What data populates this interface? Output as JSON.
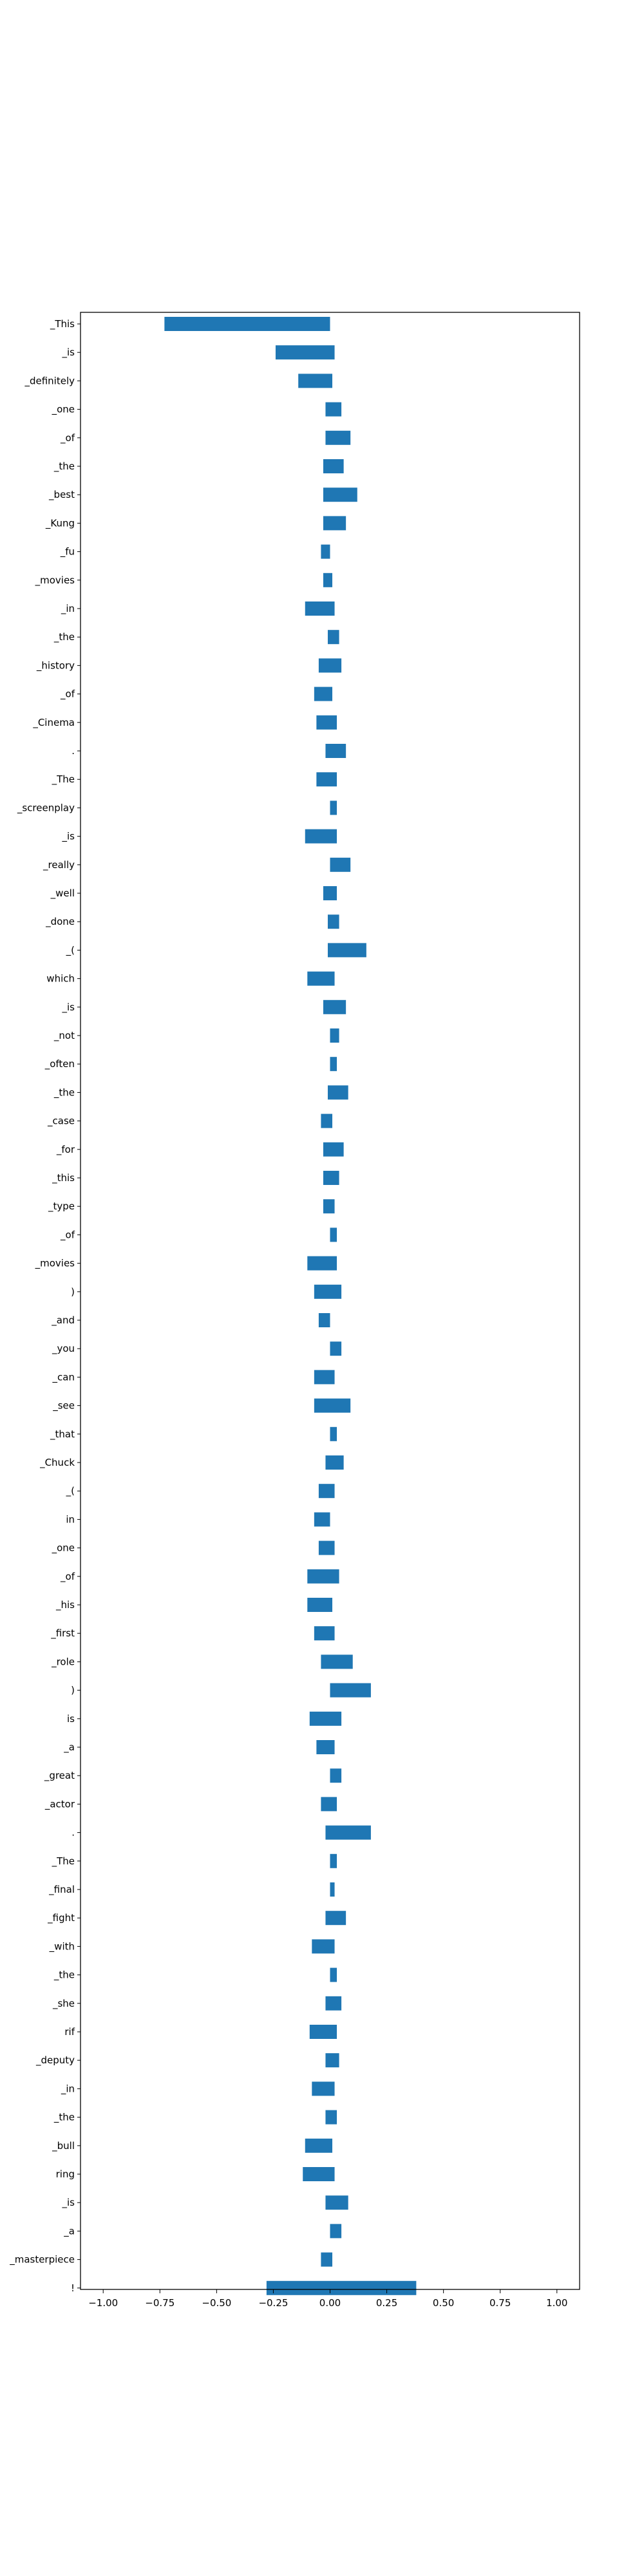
{
  "chart_data": {
    "type": "bar",
    "orientation": "horizontal",
    "grid": false,
    "xlim": [
      -1.1,
      1.1
    ],
    "xticks": [
      -1.0,
      -0.75,
      -0.5,
      -0.25,
      0.0,
      0.25,
      0.5,
      0.75,
      1.0
    ],
    "xtick_labels": [
      "−1.00",
      "−0.75",
      "−0.50",
      "−0.25",
      "0.00",
      "0.25",
      "0.50",
      "0.75",
      "1.00"
    ],
    "colors": {
      "bar": "#1f77b4"
    },
    "bars": [
      {
        "label": "_This",
        "left": -0.73,
        "right": 0.0
      },
      {
        "label": "_is",
        "left": -0.24,
        "right": 0.02
      },
      {
        "label": "_definitely",
        "left": -0.14,
        "right": 0.01
      },
      {
        "label": "_one",
        "left": -0.02,
        "right": 0.05
      },
      {
        "label": "_of",
        "left": -0.02,
        "right": 0.09
      },
      {
        "label": "_the",
        "left": -0.03,
        "right": 0.06
      },
      {
        "label": "_best",
        "left": -0.03,
        "right": 0.12
      },
      {
        "label": "_Kung",
        "left": -0.03,
        "right": 0.07
      },
      {
        "label": "_fu",
        "left": -0.04,
        "right": 0.0
      },
      {
        "label": "_movies",
        "left": -0.03,
        "right": 0.01
      },
      {
        "label": "_in",
        "left": -0.11,
        "right": 0.02
      },
      {
        "label": "_the",
        "left": -0.01,
        "right": 0.04
      },
      {
        "label": "_history",
        "left": -0.05,
        "right": 0.05
      },
      {
        "label": "_of",
        "left": -0.07,
        "right": 0.01
      },
      {
        "label": "_Cinema",
        "left": -0.06,
        "right": 0.03
      },
      {
        "label": ".",
        "left": -0.02,
        "right": 0.07
      },
      {
        "label": "_The",
        "left": -0.06,
        "right": 0.03
      },
      {
        "label": "_screenplay",
        "left": 0.0,
        "right": 0.03
      },
      {
        "label": "_is",
        "left": -0.11,
        "right": 0.03
      },
      {
        "label": "_really",
        "left": 0.0,
        "right": 0.09
      },
      {
        "label": "_well",
        "left": -0.03,
        "right": 0.03
      },
      {
        "label": "_done",
        "left": -0.01,
        "right": 0.04
      },
      {
        "label": "_(",
        "left": -0.01,
        "right": 0.16
      },
      {
        "label": "which",
        "left": -0.1,
        "right": 0.02
      },
      {
        "label": "_is",
        "left": -0.03,
        "right": 0.07
      },
      {
        "label": "_not",
        "left": 0.0,
        "right": 0.04
      },
      {
        "label": "_often",
        "left": 0.0,
        "right": 0.03
      },
      {
        "label": "_the",
        "left": -0.01,
        "right": 0.08
      },
      {
        "label": "_case",
        "left": -0.04,
        "right": 0.01
      },
      {
        "label": "_for",
        "left": -0.03,
        "right": 0.06
      },
      {
        "label": "_this",
        "left": -0.03,
        "right": 0.04
      },
      {
        "label": "_type",
        "left": -0.03,
        "right": 0.02
      },
      {
        "label": "_of",
        "left": 0.0,
        "right": 0.03
      },
      {
        "label": "_movies",
        "left": -0.1,
        "right": 0.03
      },
      {
        "label": ")",
        "left": -0.07,
        "right": 0.05
      },
      {
        "label": "_and",
        "left": -0.05,
        "right": 0.0
      },
      {
        "label": "_you",
        "left": 0.0,
        "right": 0.05
      },
      {
        "label": "_can",
        "left": -0.07,
        "right": 0.02
      },
      {
        "label": "_see",
        "left": -0.07,
        "right": 0.09
      },
      {
        "label": "_that",
        "left": 0.0,
        "right": 0.03
      },
      {
        "label": "_Chuck",
        "left": -0.02,
        "right": 0.06
      },
      {
        "label": "_(",
        "left": -0.05,
        "right": 0.02
      },
      {
        "label": "in",
        "left": -0.07,
        "right": 0.0
      },
      {
        "label": "_one",
        "left": -0.05,
        "right": 0.02
      },
      {
        "label": "_of",
        "left": -0.1,
        "right": 0.04
      },
      {
        "label": "_his",
        "left": -0.1,
        "right": 0.01
      },
      {
        "label": "_first",
        "left": -0.07,
        "right": 0.02
      },
      {
        "label": "_role",
        "left": -0.04,
        "right": 0.1
      },
      {
        "label": ")",
        "left": 0.0,
        "right": 0.18
      },
      {
        "label": "is",
        "left": -0.09,
        "right": 0.05
      },
      {
        "label": "_a",
        "left": -0.06,
        "right": 0.02
      },
      {
        "label": "_great",
        "left": 0.0,
        "right": 0.05
      },
      {
        "label": "_actor",
        "left": -0.04,
        "right": 0.03
      },
      {
        "label": ".",
        "left": -0.02,
        "right": 0.18
      },
      {
        "label": "_The",
        "left": 0.0,
        "right": 0.03
      },
      {
        "label": "_final",
        "left": 0.0,
        "right": 0.02
      },
      {
        "label": "_fight",
        "left": -0.02,
        "right": 0.07
      },
      {
        "label": "_with",
        "left": -0.08,
        "right": 0.02
      },
      {
        "label": "_the",
        "left": 0.0,
        "right": 0.03
      },
      {
        "label": "_she",
        "left": -0.02,
        "right": 0.05
      },
      {
        "label": "rif",
        "left": -0.09,
        "right": 0.03
      },
      {
        "label": "_deputy",
        "left": -0.02,
        "right": 0.04
      },
      {
        "label": "_in",
        "left": -0.08,
        "right": 0.02
      },
      {
        "label": "_the",
        "left": -0.02,
        "right": 0.03
      },
      {
        "label": "_bull",
        "left": -0.11,
        "right": 0.01
      },
      {
        "label": "ring",
        "left": -0.12,
        "right": 0.02
      },
      {
        "label": "_is",
        "left": -0.02,
        "right": 0.08
      },
      {
        "label": "_a",
        "left": 0.0,
        "right": 0.05
      },
      {
        "label": "_masterpiece",
        "left": -0.04,
        "right": 0.01
      },
      {
        "label": "!",
        "left": -0.28,
        "right": 0.38
      }
    ]
  }
}
